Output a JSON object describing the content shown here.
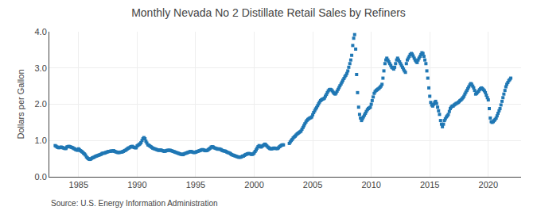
{
  "chart_data": {
    "type": "scatter",
    "title": "Monthly Nevada No 2 Distillate Retail Sales by Refiners",
    "ylabel": "Dollars per Gallon",
    "annotations": [
      "Source: U.S. Energy Information Administration"
    ],
    "marker": "square",
    "grid": true,
    "xlim": [
      1982.5,
      2022.8
    ],
    "ylim": [
      0.0,
      4.0
    ],
    "xticks": [
      1985,
      1990,
      1995,
      2000,
      2005,
      2010,
      2015,
      2020
    ],
    "yticks": [
      {
        "value": 0.0,
        "label": "0.0"
      },
      {
        "value": 1.0,
        "label": "1.0"
      },
      {
        "value": 2.0,
        "label": "2.0"
      },
      {
        "value": 3.0,
        "label": "3.0"
      },
      {
        "value": 4.0,
        "label": "4.0"
      }
    ],
    "x": [
      1983.0,
      1983.08,
      1983.17,
      1983.25,
      1983.33,
      1983.42,
      1983.5,
      1983.58,
      1983.67,
      1983.75,
      1983.83,
      1983.92,
      1984.0,
      1984.08,
      1984.17,
      1984.25,
      1984.33,
      1984.42,
      1984.5,
      1984.58,
      1984.67,
      1984.75,
      1984.83,
      1984.92,
      1985.0,
      1985.08,
      1985.17,
      1985.25,
      1985.33,
      1985.42,
      1985.5,
      1985.58,
      1985.67,
      1985.75,
      1985.83,
      1985.92,
      1986.0,
      1986.08,
      1986.17,
      1986.25,
      1986.33,
      1986.42,
      1986.5,
      1986.58,
      1986.67,
      1986.75,
      1986.83,
      1986.92,
      1987.0,
      1987.08,
      1987.17,
      1987.25,
      1987.33,
      1987.42,
      1987.5,
      1987.58,
      1987.67,
      1987.75,
      1987.83,
      1987.92,
      1988.0,
      1988.08,
      1988.17,
      1988.25,
      1988.33,
      1988.42,
      1988.5,
      1988.58,
      1988.67,
      1988.75,
      1988.83,
      1988.92,
      1989.0,
      1989.08,
      1989.17,
      1989.25,
      1989.33,
      1989.42,
      1989.5,
      1989.58,
      1989.67,
      1989.75,
      1989.83,
      1989.92,
      1990.0,
      1990.08,
      1990.17,
      1990.25,
      1990.33,
      1990.42,
      1990.5,
      1990.58,
      1990.67,
      1990.75,
      1990.83,
      1990.92,
      1991.0,
      1991.08,
      1991.17,
      1991.25,
      1991.33,
      1991.42,
      1991.5,
      1991.58,
      1991.67,
      1991.75,
      1991.83,
      1991.92,
      1992.0,
      1992.08,
      1992.17,
      1992.25,
      1992.33,
      1992.42,
      1992.5,
      1992.58,
      1992.67,
      1992.75,
      1992.83,
      1992.92,
      1993.0,
      1993.08,
      1993.17,
      1993.25,
      1993.33,
      1993.42,
      1993.5,
      1993.58,
      1993.67,
      1993.75,
      1993.83,
      1993.92,
      1994.0,
      1994.08,
      1994.17,
      1994.25,
      1994.33,
      1994.42,
      1994.5,
      1994.58,
      1994.67,
      1994.75,
      1994.83,
      1994.92,
      1995.0,
      1995.08,
      1995.17,
      1995.25,
      1995.33,
      1995.42,
      1995.5,
      1995.58,
      1995.67,
      1995.75,
      1995.83,
      1995.92,
      1996.0,
      1996.08,
      1996.17,
      1996.25,
      1996.33,
      1996.42,
      1996.5,
      1996.58,
      1996.67,
      1996.75,
      1996.83,
      1996.92,
      1997.0,
      1997.08,
      1997.17,
      1997.25,
      1997.33,
      1997.42,
      1997.5,
      1997.58,
      1997.67,
      1997.75,
      1997.83,
      1997.92,
      1998.0,
      1998.08,
      1998.17,
      1998.25,
      1998.33,
      1998.42,
      1998.5,
      1998.58,
      1998.67,
      1998.75,
      1998.83,
      1998.92,
      1999.0,
      1999.08,
      1999.17,
      1999.25,
      1999.33,
      1999.42,
      1999.5,
      1999.58,
      1999.67,
      1999.75,
      1999.83,
      1999.92,
      2000.0,
      2000.08,
      2000.17,
      2000.25,
      2000.33,
      2000.42,
      2000.5,
      2000.58,
      2000.67,
      2000.75,
      2000.83,
      2000.92,
      2001.0,
      2001.08,
      2001.17,
      2001.25,
      2001.33,
      2001.42,
      2001.5,
      2001.58,
      2001.67,
      2001.75,
      2001.83,
      2001.92,
      2002.0,
      2002.08,
      2002.17,
      2002.25,
      2002.33,
      2002.42,
      2002.5,
      2003.0,
      2003.08,
      2003.17,
      2003.25,
      2003.33,
      2003.42,
      2003.5,
      2003.58,
      2003.67,
      2003.75,
      2003.83,
      2003.92,
      2004.0,
      2004.08,
      2004.17,
      2004.25,
      2004.33,
      2004.42,
      2004.5,
      2004.58,
      2004.67,
      2004.75,
      2004.83,
      2004.92,
      2005.0,
      2005.08,
      2005.17,
      2005.25,
      2005.33,
      2005.42,
      2005.5,
      2005.58,
      2005.67,
      2005.75,
      2005.83,
      2005.92,
      2006.0,
      2006.08,
      2006.17,
      2006.25,
      2006.33,
      2006.42,
      2006.5,
      2006.58,
      2006.67,
      2006.75,
      2006.83,
      2006.92,
      2007.0,
      2007.08,
      2007.17,
      2007.25,
      2007.33,
      2007.42,
      2007.5,
      2007.58,
      2007.67,
      2007.75,
      2007.83,
      2007.92,
      2008.0,
      2008.08,
      2008.17,
      2008.25,
      2008.33,
      2008.42,
      2008.5,
      2008.58,
      2008.67,
      2008.75,
      2008.83,
      2008.92,
      2009.0,
      2009.08,
      2009.17,
      2009.25,
      2009.33,
      2009.42,
      2009.5,
      2009.58,
      2009.67,
      2009.75,
      2009.83,
      2009.92,
      2010.0,
      2010.08,
      2010.17,
      2010.25,
      2010.33,
      2010.42,
      2010.5,
      2010.58,
      2010.67,
      2010.75,
      2010.83,
      2010.92,
      2011.0,
      2011.08,
      2011.17,
      2011.25,
      2011.33,
      2011.42,
      2011.5,
      2011.58,
      2011.67,
      2011.75,
      2011.83,
      2011.92,
      2012.0,
      2012.08,
      2012.17,
      2012.25,
      2012.33,
      2012.42,
      2012.5,
      2012.58,
      2012.67,
      2012.75,
      2012.83,
      2012.92,
      2013.0,
      2013.08,
      2013.17,
      2013.25,
      2013.33,
      2013.42,
      2013.5,
      2013.58,
      2013.67,
      2013.75,
      2013.83,
      2013.92,
      2014.0,
      2014.08,
      2014.17,
      2014.25,
      2014.33,
      2014.42,
      2014.5,
      2014.58,
      2014.67,
      2014.75,
      2014.83,
      2014.92,
      2015.0,
      2015.08,
      2015.17,
      2015.25,
      2015.33,
      2015.42,
      2015.5,
      2015.58,
      2015.67,
      2015.75,
      2015.83,
      2015.92,
      2016.0,
      2016.08,
      2016.17,
      2016.25,
      2016.33,
      2016.42,
      2016.5,
      2016.58,
      2016.67,
      2016.75,
      2016.83,
      2016.92,
      2017.0,
      2017.08,
      2017.17,
      2017.25,
      2017.33,
      2017.42,
      2017.5,
      2017.58,
      2017.67,
      2017.75,
      2017.83,
      2017.92,
      2018.0,
      2018.08,
      2018.17,
      2018.25,
      2018.33,
      2018.42,
      2018.5,
      2018.58,
      2018.67,
      2018.75,
      2018.83,
      2018.92,
      2019.0,
      2019.08,
      2019.17,
      2019.25,
      2019.33,
      2019.42,
      2019.5,
      2019.58,
      2019.67,
      2019.75,
      2019.83,
      2019.92,
      2020.0,
      2020.08,
      2020.17,
      2020.25,
      2020.33,
      2020.42,
      2020.5,
      2020.58,
      2020.67,
      2020.75,
      2020.83,
      2020.92,
      2021.0,
      2021.08,
      2021.17,
      2021.25,
      2021.33,
      2021.42,
      2021.5,
      2021.58,
      2021.67,
      2021.75,
      2021.83,
      2021.92
    ],
    "values": [
      0.86,
      0.84,
      0.82,
      0.81,
      0.8,
      0.81,
      0.82,
      0.81,
      0.8,
      0.79,
      0.78,
      0.78,
      0.82,
      0.83,
      0.84,
      0.83,
      0.82,
      0.81,
      0.8,
      0.78,
      0.77,
      0.75,
      0.74,
      0.73,
      0.77,
      0.74,
      0.72,
      0.7,
      0.68,
      0.65,
      0.63,
      0.6,
      0.55,
      0.52,
      0.5,
      0.48,
      0.48,
      0.5,
      0.52,
      0.53,
      0.54,
      0.56,
      0.57,
      0.58,
      0.59,
      0.6,
      0.61,
      0.62,
      0.64,
      0.65,
      0.65,
      0.66,
      0.67,
      0.68,
      0.69,
      0.7,
      0.7,
      0.71,
      0.71,
      0.71,
      0.72,
      0.7,
      0.69,
      0.68,
      0.67,
      0.67,
      0.67,
      0.68,
      0.68,
      0.69,
      0.7,
      0.72,
      0.73,
      0.75,
      0.77,
      0.79,
      0.8,
      0.82,
      0.83,
      0.84,
      0.82,
      0.81,
      0.8,
      0.8,
      0.85,
      0.87,
      0.89,
      0.91,
      0.94,
      1.0,
      1.05,
      1.08,
      1.05,
      0.98,
      0.93,
      0.88,
      0.87,
      0.85,
      0.83,
      0.81,
      0.79,
      0.78,
      0.77,
      0.76,
      0.75,
      0.74,
      0.73,
      0.73,
      0.74,
      0.73,
      0.72,
      0.71,
      0.7,
      0.71,
      0.72,
      0.73,
      0.73,
      0.73,
      0.73,
      0.72,
      0.71,
      0.7,
      0.69,
      0.68,
      0.67,
      0.66,
      0.65,
      0.64,
      0.63,
      0.62,
      0.62,
      0.61,
      0.63,
      0.64,
      0.65,
      0.66,
      0.67,
      0.68,
      0.69,
      0.7,
      0.69,
      0.68,
      0.67,
      0.67,
      0.68,
      0.69,
      0.7,
      0.71,
      0.72,
      0.73,
      0.74,
      0.75,
      0.74,
      0.73,
      0.72,
      0.72,
      0.73,
      0.75,
      0.77,
      0.79,
      0.82,
      0.83,
      0.82,
      0.8,
      0.79,
      0.78,
      0.77,
      0.76,
      0.77,
      0.76,
      0.75,
      0.73,
      0.72,
      0.71,
      0.71,
      0.7,
      0.68,
      0.67,
      0.66,
      0.65,
      0.63,
      0.61,
      0.6,
      0.59,
      0.58,
      0.57,
      0.56,
      0.55,
      0.54,
      0.54,
      0.54,
      0.55,
      0.57,
      0.57,
      0.59,
      0.61,
      0.62,
      0.63,
      0.64,
      0.64,
      0.63,
      0.62,
      0.62,
      0.63,
      0.66,
      0.7,
      0.74,
      0.79,
      0.83,
      0.86,
      0.84,
      0.82,
      0.84,
      0.86,
      0.88,
      0.9,
      0.88,
      0.85,
      0.82,
      0.8,
      0.78,
      0.77,
      0.77,
      0.78,
      0.79,
      0.79,
      0.78,
      0.78,
      0.78,
      0.8,
      0.83,
      0.85,
      0.87,
      0.88,
      0.88,
      0.92,
      0.96,
      1.0,
      1.03,
      1.07,
      1.1,
      1.12,
      1.15,
      1.18,
      1.2,
      1.22,
      1.24,
      1.26,
      1.31,
      1.36,
      1.41,
      1.46,
      1.51,
      1.55,
      1.58,
      1.6,
      1.62,
      1.63,
      1.65,
      1.71,
      1.77,
      1.82,
      1.87,
      1.91,
      1.96,
      2.01,
      2.06,
      2.1,
      2.12,
      2.14,
      2.15,
      2.17,
      2.22,
      2.27,
      2.32,
      2.37,
      2.4,
      2.41,
      2.4,
      2.37,
      2.33,
      2.3,
      2.28,
      2.31,
      2.36,
      2.41,
      2.46,
      2.51,
      2.56,
      2.61,
      2.66,
      2.71,
      2.76,
      2.8,
      2.85,
      2.92,
      3.02,
      3.12,
      3.22,
      3.35,
      3.62,
      3.82,
      3.92,
      3.52,
      2.82,
      2.32,
      1.92,
      1.72,
      1.62,
      1.55,
      1.6,
      1.65,
      1.7,
      1.75,
      1.8,
      1.85,
      1.88,
      1.9,
      1.92,
      2.0,
      2.1,
      2.2,
      2.3,
      2.35,
      2.38,
      2.4,
      2.42,
      2.44,
      2.47,
      2.5,
      2.55,
      2.72,
      2.92,
      3.12,
      3.22,
      3.27,
      3.22,
      3.17,
      3.12,
      3.07,
      3.02,
      3.0,
      2.97,
      3.02,
      3.12,
      3.22,
      3.27,
      3.22,
      3.17,
      3.12,
      3.07,
      3.02,
      2.97,
      2.92,
      2.88,
      3.12,
      3.22,
      3.27,
      3.32,
      3.37,
      3.4,
      3.38,
      3.33,
      3.27,
      3.22,
      3.18,
      3.15,
      3.22,
      3.27,
      3.32,
      3.37,
      3.42,
      3.4,
      3.32,
      3.22,
      3.12,
      2.92,
      2.72,
      2.45,
      2.22,
      2.05,
      1.98,
      1.95,
      2.0,
      2.05,
      2.08,
      2.02,
      1.92,
      1.82,
      1.72,
      1.55,
      1.45,
      1.38,
      1.45,
      1.55,
      1.6,
      1.65,
      1.68,
      1.72,
      1.8,
      1.88,
      1.92,
      1.95,
      1.95,
      1.98,
      2.0,
      2.02,
      2.03,
      2.05,
      2.07,
      2.1,
      2.12,
      2.15,
      2.18,
      2.22,
      2.28,
      2.33,
      2.38,
      2.43,
      2.48,
      2.53,
      2.57,
      2.55,
      2.5,
      2.45,
      2.38,
      2.28,
      2.3,
      2.33,
      2.36,
      2.4,
      2.43,
      2.45,
      2.43,
      2.4,
      2.37,
      2.32,
      2.25,
      2.18,
      2.12,
      1.88,
      1.62,
      1.52,
      1.5,
      1.52,
      1.55,
      1.58,
      1.62,
      1.68,
      1.75,
      1.82,
      1.88,
      1.98,
      2.08,
      2.18,
      2.28,
      2.38,
      2.48,
      2.55,
      2.6,
      2.65,
      2.68,
      2.72
    ]
  }
}
